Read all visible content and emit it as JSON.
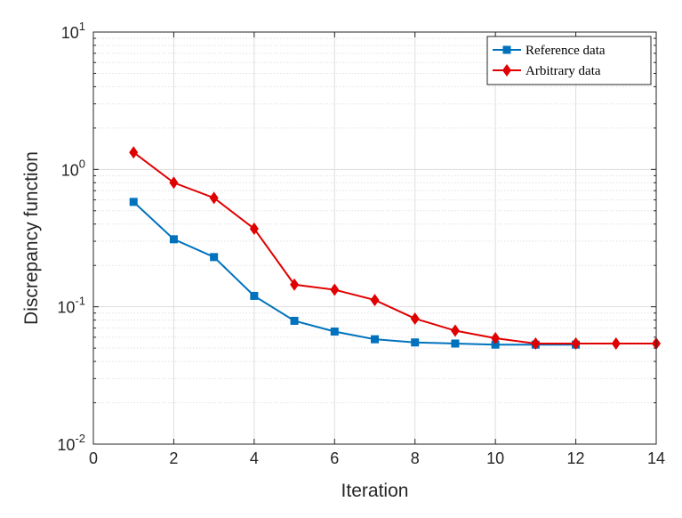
{
  "chart_data": {
    "type": "line",
    "xlabel": "Iteration",
    "ylabel": "Discrepancy function",
    "xlim": [
      0,
      14
    ],
    "ylim": [
      0.01,
      10
    ],
    "yscale": "log",
    "grid": true,
    "legend_position": "top-right",
    "x_ticks": [
      "0",
      "2",
      "4",
      "6",
      "8",
      "10",
      "12",
      "14"
    ],
    "y_ticks": [
      {
        "base": "10",
        "exp": "-2"
      },
      {
        "base": "10",
        "exp": "-1"
      },
      {
        "base": "10",
        "exp": "0"
      },
      {
        "base": "10",
        "exp": "1"
      }
    ],
    "series": [
      {
        "name": "Reference data",
        "color": "#0072BD",
        "marker": "square",
        "x": [
          1,
          2,
          3,
          4,
          5,
          6,
          7,
          8,
          9,
          10,
          11,
          12
        ],
        "y": [
          0.58,
          0.31,
          0.23,
          0.12,
          0.079,
          0.066,
          0.058,
          0.055,
          0.054,
          0.053,
          0.053,
          0.053
        ]
      },
      {
        "name": "Arbitrary data",
        "color": "#E00000",
        "marker": "diamond",
        "x": [
          1,
          2,
          3,
          4,
          5,
          6,
          7,
          8,
          9,
          10,
          11,
          12,
          13,
          14
        ],
        "y": [
          1.33,
          0.8,
          0.62,
          0.37,
          0.145,
          0.133,
          0.112,
          0.082,
          0.067,
          0.059,
          0.054,
          0.054,
          0.054,
          0.054
        ]
      }
    ]
  }
}
